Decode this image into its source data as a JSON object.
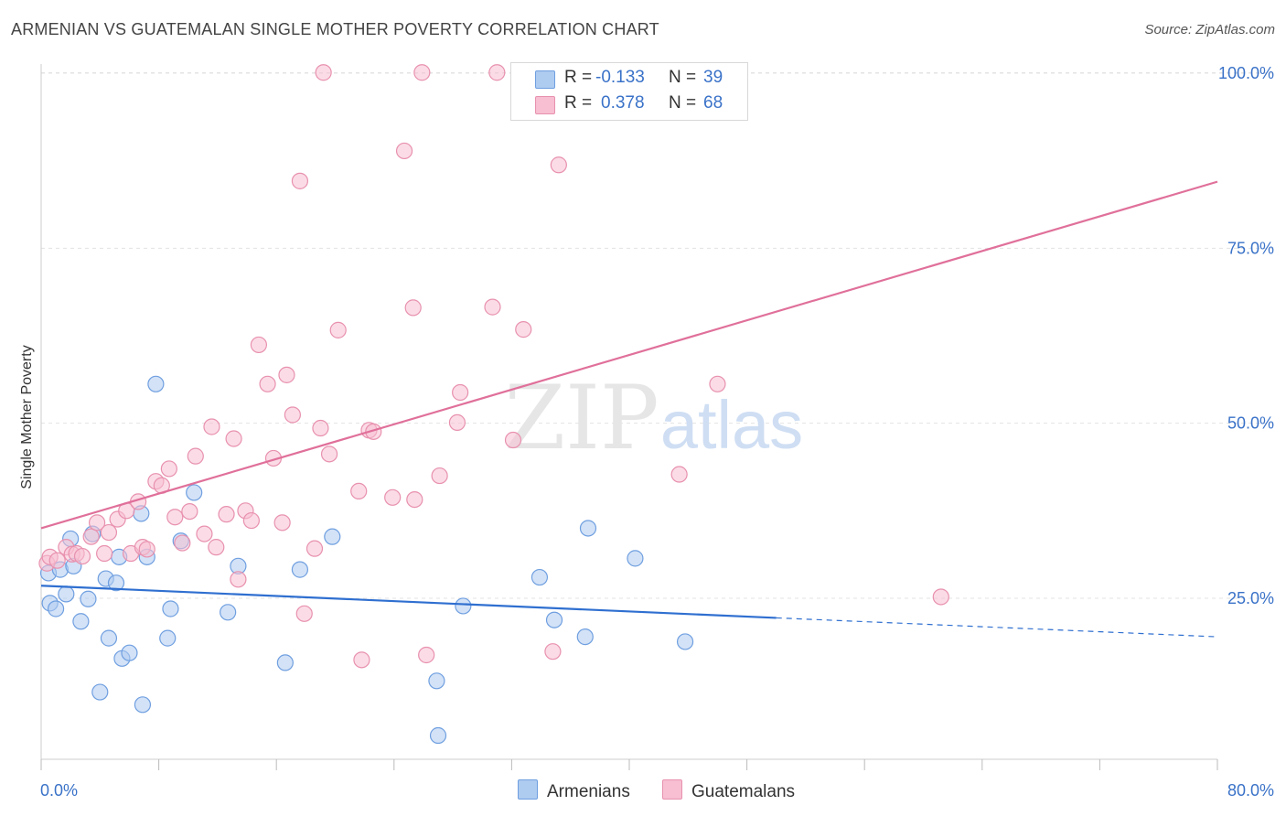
{
  "title": "ARMENIAN VS GUATEMALAN SINGLE MOTHER POVERTY CORRELATION CHART",
  "source": "Source: ZipAtlas.com",
  "watermark": {
    "zip": "ZIP",
    "atlas": "atlas"
  },
  "legend": {
    "r_label": "R =",
    "n_label": "N =",
    "armenians": {
      "r": "-0.133",
      "n": "39"
    },
    "guatemalans": {
      "r": "0.378",
      "n": "68"
    }
  },
  "bottom_legend": {
    "armenians": "Armenians",
    "guatemalans": "Guatemalans"
  },
  "colors": {
    "armenians_fill": "#aecbf0",
    "armenians_stroke": "#6f9fe0",
    "armenians_line": "#2f6fd0",
    "guatemalans_fill": "#f7bfd1",
    "guatemalans_stroke": "#e891ae",
    "guatemalans_line": "#e0709a",
    "tick_text": "#3a72c8"
  },
  "chart_data": {
    "type": "scatter",
    "ylabel": "Single Mother Poverty",
    "xlabel": "",
    "x_range": [
      0,
      80
    ],
    "y_range": [
      3,
      102
    ],
    "x_tick_labels": [
      {
        "x": 0,
        "label": "0.0%"
      },
      {
        "x": 80,
        "label": "80.0%"
      }
    ],
    "y_tick_labels": [
      {
        "y": 25,
        "label": "25.0%"
      },
      {
        "y": 50,
        "label": "50.0%"
      },
      {
        "y": 75,
        "label": "75.0%"
      },
      {
        "y": 100,
        "label": "100.0%"
      }
    ],
    "grid": true,
    "series": [
      {
        "name": "Armenians",
        "trend": {
          "x0": 0,
          "y0": 26.8,
          "x1": 50,
          "y1": 22.2,
          "dashed_to_x": 80,
          "dashed_to_y": 19.5
        },
        "points": [
          [
            0.5,
            28.6
          ],
          [
            0.6,
            24.3
          ],
          [
            1.0,
            23.5
          ],
          [
            1.3,
            29.1
          ],
          [
            1.7,
            25.6
          ],
          [
            2.0,
            33.5
          ],
          [
            2.2,
            29.6
          ],
          [
            2.7,
            21.7
          ],
          [
            3.2,
            24.9
          ],
          [
            3.5,
            34.2
          ],
          [
            4.0,
            11.6
          ],
          [
            4.4,
            27.8
          ],
          [
            4.6,
            19.3
          ],
          [
            5.1,
            27.2
          ],
          [
            5.3,
            30.9
          ],
          [
            5.5,
            16.4
          ],
          [
            6.0,
            17.2
          ],
          [
            6.9,
            9.8
          ],
          [
            6.8,
            37.1
          ],
          [
            7.2,
            30.9
          ],
          [
            7.8,
            55.6
          ],
          [
            8.6,
            19.3
          ],
          [
            8.8,
            23.5
          ],
          [
            9.5,
            33.2
          ],
          [
            10.4,
            40.1
          ],
          [
            12.7,
            23.0
          ],
          [
            13.4,
            29.6
          ],
          [
            16.6,
            15.8
          ],
          [
            17.6,
            29.1
          ],
          [
            19.8,
            33.8
          ],
          [
            26.9,
            13.2
          ],
          [
            27.0,
            5.4
          ],
          [
            28.7,
            23.9
          ],
          [
            33.9,
            28.0
          ],
          [
            34.9,
            21.9
          ],
          [
            37.2,
            35.0
          ],
          [
            37.0,
            19.5
          ],
          [
            40.4,
            30.7
          ],
          [
            43.8,
            18.8
          ]
        ]
      },
      {
        "name": "Guatemalans",
        "trend": {
          "x0": 0,
          "y0": 35.0,
          "x1": 80,
          "y1": 84.5
        },
        "points": [
          [
            0.4,
            30.0
          ],
          [
            0.6,
            30.9
          ],
          [
            1.1,
            30.4
          ],
          [
            1.7,
            32.3
          ],
          [
            2.1,
            31.3
          ],
          [
            2.4,
            31.4
          ],
          [
            2.8,
            31.0
          ],
          [
            3.4,
            33.8
          ],
          [
            3.8,
            35.8
          ],
          [
            4.3,
            31.4
          ],
          [
            4.6,
            34.4
          ],
          [
            5.2,
            36.3
          ],
          [
            5.8,
            37.5
          ],
          [
            6.1,
            31.4
          ],
          [
            6.6,
            38.8
          ],
          [
            6.9,
            32.3
          ],
          [
            7.2,
            32.0
          ],
          [
            7.8,
            41.7
          ],
          [
            8.2,
            41.1
          ],
          [
            8.7,
            43.5
          ],
          [
            9.1,
            36.6
          ],
          [
            9.6,
            32.9
          ],
          [
            10.1,
            37.4
          ],
          [
            10.5,
            45.3
          ],
          [
            11.1,
            34.2
          ],
          [
            11.6,
            49.5
          ],
          [
            11.9,
            32.3
          ],
          [
            12.6,
            37.0
          ],
          [
            13.1,
            47.8
          ],
          [
            13.4,
            27.7
          ],
          [
            13.9,
            37.5
          ],
          [
            14.3,
            36.1
          ],
          [
            14.8,
            61.2
          ],
          [
            15.4,
            55.6
          ],
          [
            15.8,
            45.0
          ],
          [
            16.4,
            35.8
          ],
          [
            16.7,
            56.9
          ],
          [
            17.1,
            51.2
          ],
          [
            17.6,
            84.6
          ],
          [
            17.9,
            22.8
          ],
          [
            18.6,
            32.1
          ],
          [
            19.0,
            49.3
          ],
          [
            19.2,
            100.1
          ],
          [
            19.6,
            45.6
          ],
          [
            20.2,
            63.3
          ],
          [
            21.6,
            40.3
          ],
          [
            21.8,
            16.2
          ],
          [
            22.3,
            49.0
          ],
          [
            22.6,
            48.8
          ],
          [
            23.9,
            39.4
          ],
          [
            24.7,
            88.9
          ],
          [
            25.3,
            66.5
          ],
          [
            25.4,
            39.1
          ],
          [
            25.9,
            100.1
          ],
          [
            26.2,
            16.9
          ],
          [
            27.1,
            42.5
          ],
          [
            28.3,
            50.1
          ],
          [
            28.5,
            54.4
          ],
          [
            30.7,
            66.6
          ],
          [
            31.0,
            100.1
          ],
          [
            32.1,
            47.6
          ],
          [
            32.8,
            63.4
          ],
          [
            34.8,
            17.4
          ],
          [
            35.2,
            86.9
          ],
          [
            37.3,
            100.0
          ],
          [
            43.4,
            42.7
          ],
          [
            46.0,
            55.6
          ],
          [
            61.2,
            25.2
          ]
        ]
      }
    ]
  }
}
